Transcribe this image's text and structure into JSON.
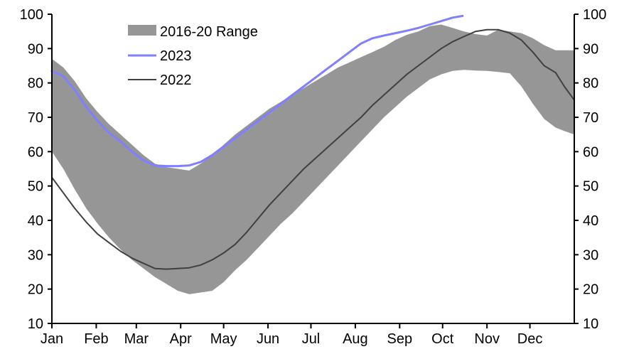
{
  "chart_data": {
    "type": "line",
    "title": "",
    "xlabel": "",
    "ylabel": "",
    "ylim": [
      10,
      100
    ],
    "y_ticks": [
      10,
      20,
      30,
      40,
      50,
      60,
      70,
      80,
      90,
      100
    ],
    "y_axes": [
      "left",
      "right"
    ],
    "x_unit": "day_of_year",
    "xlim": [
      0,
      365
    ],
    "x_tick_labels": [
      "Jan",
      "Feb",
      "Mar",
      "Apr",
      "May",
      "Jun",
      "Jul",
      "Aug",
      "Sep",
      "Oct",
      "Nov",
      "Dec"
    ],
    "x_tick_days": [
      0,
      31,
      59,
      90,
      120,
      151,
      181,
      212,
      243,
      273,
      304,
      334
    ],
    "grid": false,
    "legend_position": "top-left",
    "colors": {
      "range": "#969696",
      "y2023": "#7F7FFF",
      "y2022": "#404040"
    },
    "series": [
      {
        "name": "2016-20 Range",
        "type": "area-band",
        "x": [
          0,
          8,
          16,
          24,
          32,
          40,
          48,
          56,
          64,
          72,
          80,
          88,
          96,
          104,
          112,
          120,
          128,
          136,
          144,
          152,
          160,
          168,
          176,
          184,
          192,
          200,
          208,
          216,
          224,
          232,
          240,
          248,
          256,
          264,
          272,
          280,
          288,
          296,
          304,
          312,
          320,
          328,
          336,
          344,
          352,
          358,
          365
        ],
        "upper": [
          87,
          84.5,
          80.5,
          75.5,
          71.5,
          68,
          65,
          62,
          59,
          56.5,
          55.5,
          55,
          54.5,
          56.5,
          59,
          62,
          65,
          67.5,
          70,
          72.5,
          74.5,
          76.5,
          78.5,
          80.5,
          82.5,
          84.5,
          86,
          87.5,
          89,
          90.5,
          92.5,
          94,
          95,
          96.5,
          97,
          96,
          95,
          94.2,
          93.8,
          95.5,
          95,
          94.5,
          93,
          91,
          89.5,
          89.5,
          89.5
        ],
        "lower": [
          60,
          55,
          49,
          43.5,
          39,
          35,
          31.5,
          28.5,
          26,
          23.5,
          21.5,
          19.5,
          18.5,
          19,
          19.5,
          22,
          25.5,
          28.5,
          32,
          35.5,
          39,
          42,
          45.5,
          49,
          52.5,
          56,
          59.5,
          63,
          66.5,
          70,
          73,
          76,
          78.5,
          81,
          82.5,
          83.5,
          83.8,
          83.6,
          83.5,
          83.2,
          82.8,
          79,
          74,
          69.5,
          67,
          66,
          65
        ]
      },
      {
        "name": "2023",
        "type": "line",
        "x": [
          0,
          8,
          16,
          24,
          32,
          40,
          48,
          56,
          64,
          72,
          80,
          88,
          96,
          104,
          112,
          120,
          128,
          136,
          144,
          152,
          160,
          168,
          176,
          184,
          192,
          200,
          208,
          216,
          224,
          232,
          240,
          248,
          256,
          264,
          272,
          280,
          287
        ],
        "values": [
          83.5,
          82,
          78,
          73,
          69,
          65.5,
          63,
          60,
          57.5,
          56,
          55.8,
          55.8,
          56,
          57,
          59,
          61.5,
          64,
          66.5,
          69,
          71.5,
          74,
          76.5,
          79,
          81.5,
          84,
          86.5,
          89,
          91.5,
          93,
          93.8,
          94.5,
          95.2,
          96,
          97,
          98,
          99,
          99.5
        ]
      },
      {
        "name": "2022",
        "type": "line",
        "x": [
          0,
          8,
          16,
          24,
          32,
          40,
          48,
          56,
          64,
          72,
          80,
          88,
          96,
          104,
          112,
          120,
          128,
          136,
          144,
          152,
          160,
          168,
          176,
          184,
          192,
          200,
          208,
          216,
          224,
          232,
          240,
          248,
          256,
          264,
          272,
          280,
          288,
          296,
          304,
          312,
          320,
          328,
          336,
          344,
          352,
          358,
          365
        ],
        "values": [
          52.5,
          48,
          43.5,
          39.5,
          36,
          33.5,
          31,
          29,
          27.5,
          26,
          25.8,
          26,
          26.2,
          27,
          28.5,
          30.5,
          33,
          36.5,
          40.5,
          44.5,
          48,
          51.5,
          55,
          58,
          61,
          64,
          67,
          70,
          73.5,
          76.5,
          79.5,
          82.5,
          85,
          87.5,
          90,
          92,
          93.5,
          95,
          95.5,
          95.5,
          94.5,
          92.5,
          89,
          85,
          83,
          79,
          75
        ]
      }
    ]
  }
}
